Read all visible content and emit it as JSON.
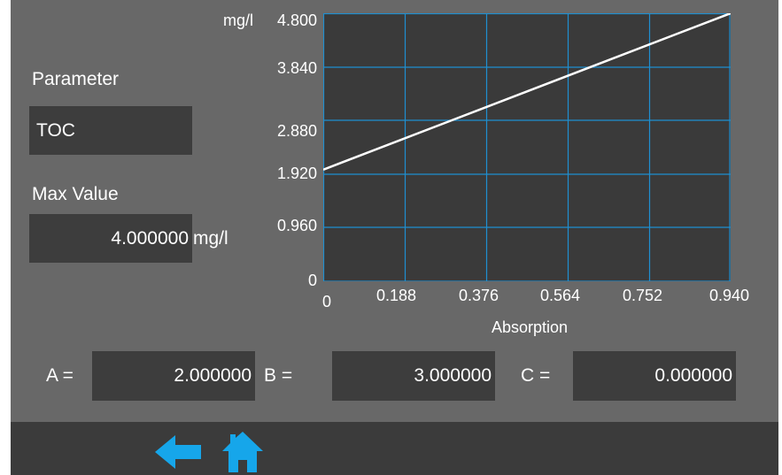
{
  "left_panel": {
    "parameter_label": "Parameter",
    "parameter_value": "TOC",
    "max_value_label": "Max Value",
    "max_value": "4.000000",
    "max_value_unit": "mg/l"
  },
  "coefficients": {
    "a_label": "A =",
    "a_value": "2.000000",
    "b_label": "B =",
    "b_value": "3.000000",
    "c_label": "C =",
    "c_value": "0.000000"
  },
  "footer": {
    "back_icon": "arrow-left-icon",
    "home_icon": "home-icon",
    "accent_color": "#16a6ea"
  },
  "chart_data": {
    "type": "line",
    "ylabel_unit": "mg/l",
    "xlabel": "Absorption",
    "y_ticks": [
      "0",
      "0.960",
      "1.920",
      "2.880",
      "3.840",
      "4.800"
    ],
    "x_ticks": [
      "0",
      "0.188",
      "0.376",
      "0.564",
      "0.752",
      "0.940"
    ],
    "xlim": [
      0,
      0.94
    ],
    "ylim": [
      0,
      4.8
    ],
    "grid": true,
    "grid_color": "#1f8fd0",
    "line_color": "#ffffff",
    "series": [
      {
        "x": [
          0,
          0.94
        ],
        "y": [
          2.0,
          4.82
        ]
      }
    ]
  }
}
